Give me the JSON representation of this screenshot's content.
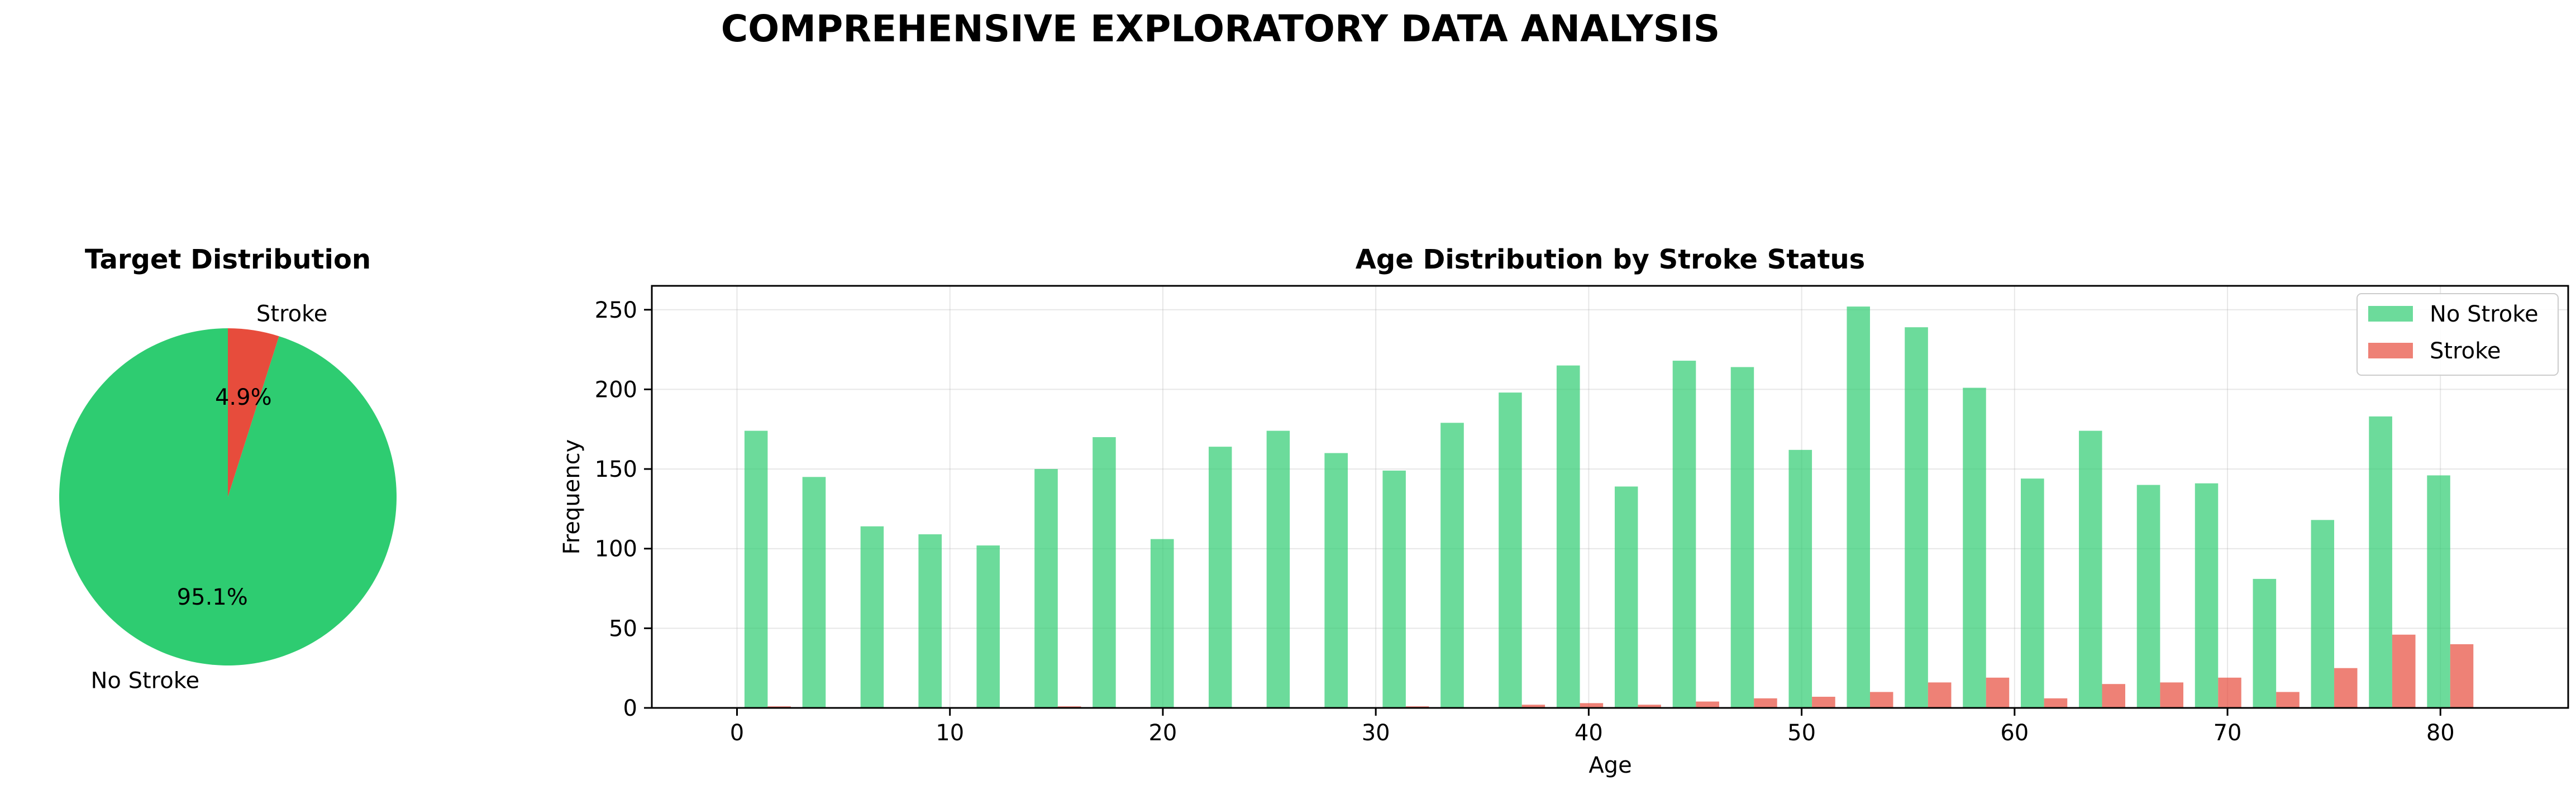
{
  "figure_title": "COMPREHENSIVE EXPLORATORY DATA ANALYSIS",
  "chart_data": [
    {
      "type": "pie",
      "title": "Target Distribution",
      "labels": [
        "No Stroke",
        "Stroke"
      ],
      "values": [
        95.1,
        4.9
      ],
      "pct_labels": [
        "95.1%",
        "4.9%"
      ],
      "colors": [
        "#2ecc71",
        "#e74c3c"
      ]
    },
    {
      "type": "bar",
      "title": "Age Distribution by Stroke Status",
      "xlabel": "Age",
      "ylabel": "Frequency",
      "xlim": [
        -4,
        86
      ],
      "ylim": [
        0,
        265
      ],
      "xticks": [
        0,
        10,
        20,
        30,
        40,
        50,
        60,
        70,
        80
      ],
      "yticks": [
        0,
        50,
        100,
        150,
        200,
        250
      ],
      "grid": true,
      "legend_position": "top-right",
      "bin_edges": [
        0.08,
        2.8,
        5.53,
        8.25,
        10.98,
        13.7,
        16.43,
        19.15,
        21.88,
        24.6,
        27.32,
        30.05,
        32.77,
        35.5,
        38.22,
        40.95,
        43.67,
        46.4,
        49.12,
        51.85,
        54.57,
        57.3,
        60.02,
        62.75,
        65.47,
        68.2,
        70.92,
        73.65,
        76.37,
        79.1,
        81.82
      ],
      "series": [
        {
          "name": "No Stroke",
          "color": "#2ecc71",
          "values": [
            174,
            145,
            114,
            109,
            102,
            150,
            170,
            106,
            164,
            174,
            160,
            149,
            179,
            198,
            215,
            139,
            218,
            214,
            162,
            252,
            239,
            201,
            144,
            174,
            140,
            141,
            81,
            118,
            183,
            146
          ]
        },
        {
          "name": "Stroke",
          "color": "#e74c3c",
          "values": [
            1,
            0,
            0,
            0,
            0,
            1,
            0,
            0,
            0,
            0,
            0,
            1,
            0,
            2,
            3,
            2,
            4,
            6,
            7,
            10,
            16,
            19,
            6,
            15,
            16,
            19,
            10,
            25,
            46,
            40
          ]
        }
      ]
    }
  ]
}
